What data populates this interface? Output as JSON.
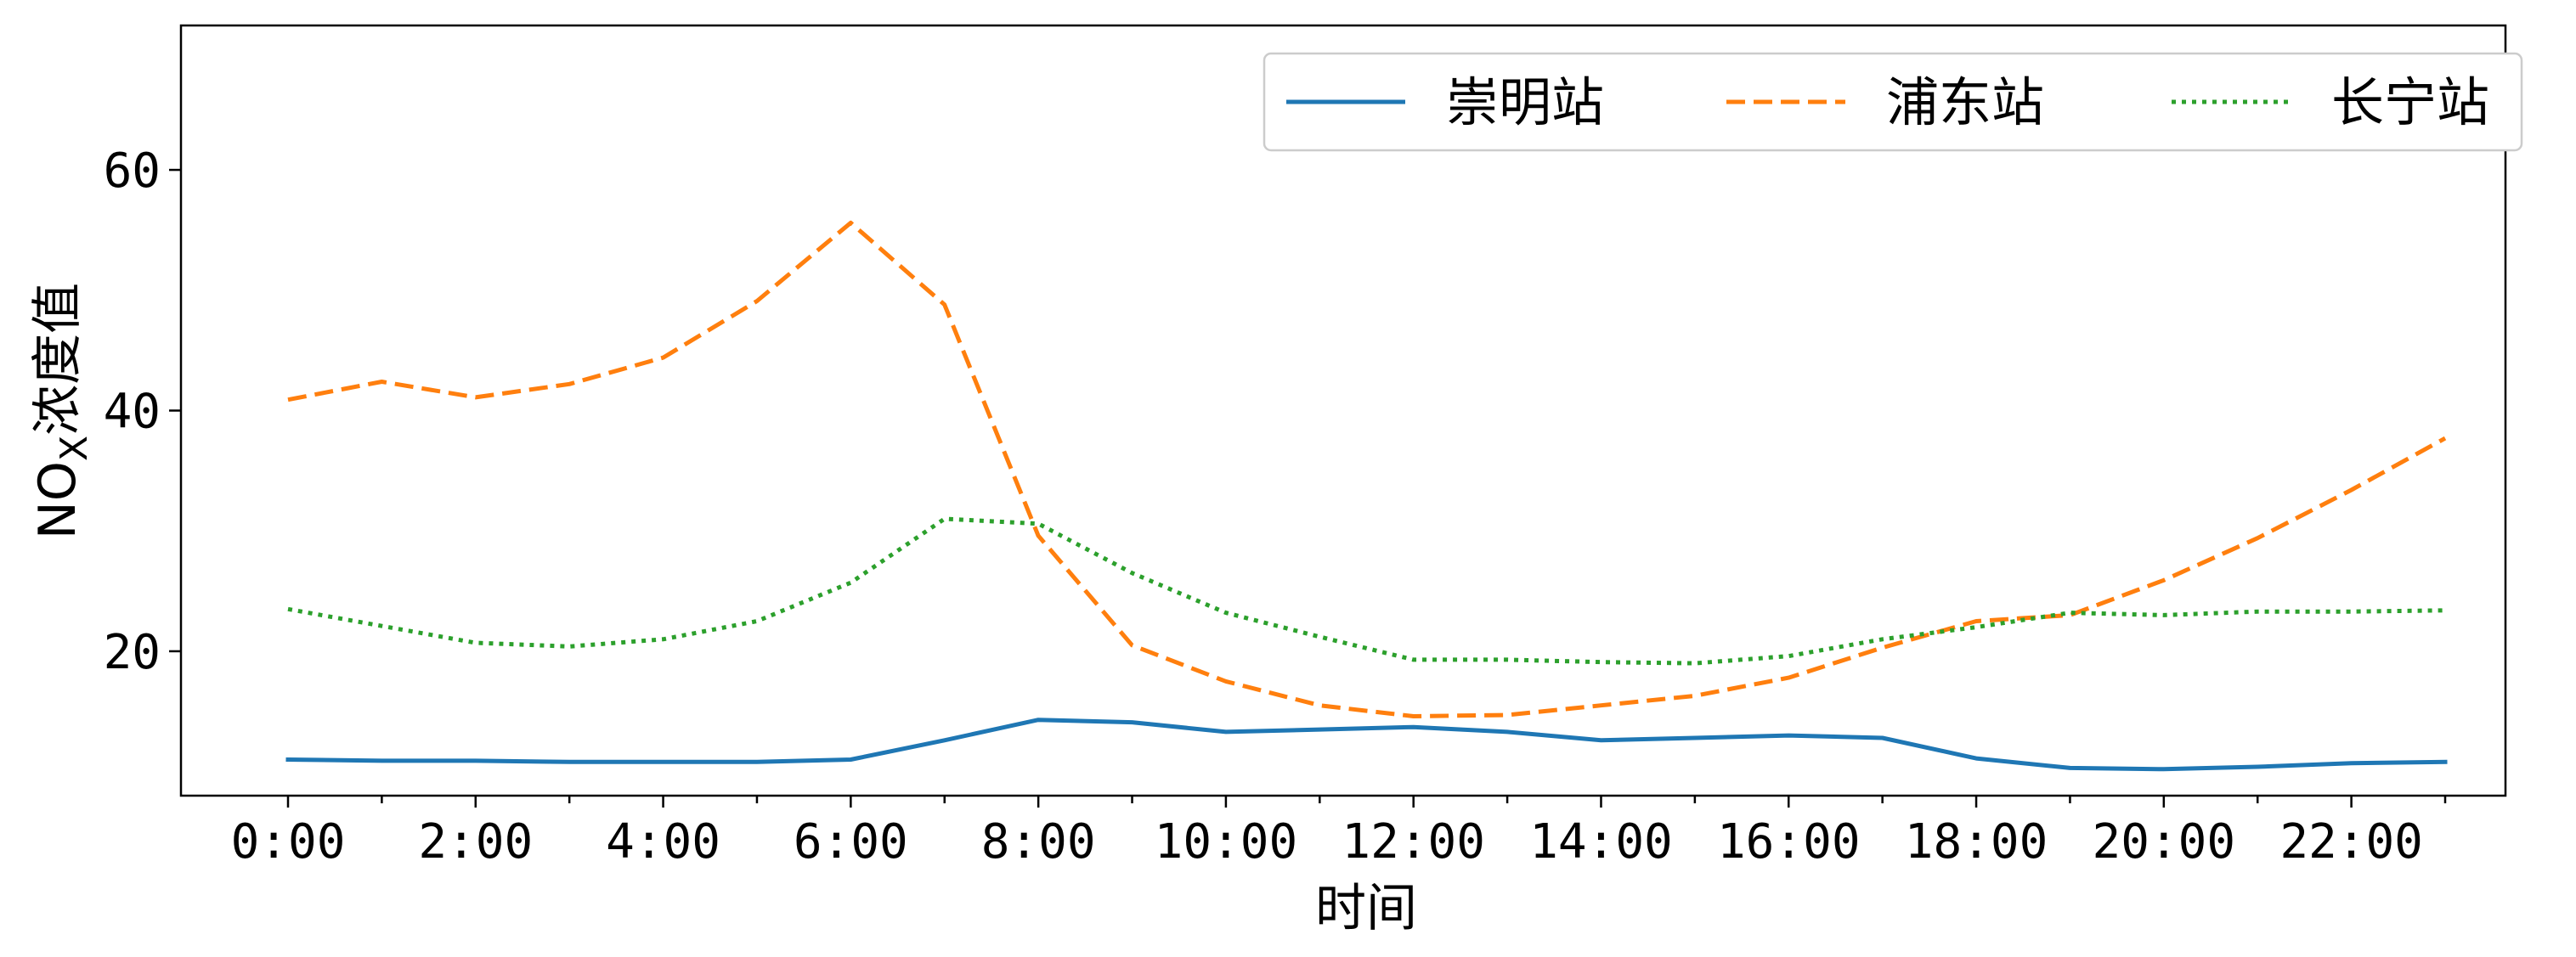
{
  "chart_data": {
    "type": "line",
    "xlabel": "时间",
    "ylabel_main": "NO",
    "ylabel_sub": "X",
    "ylabel_rest": "浓度值",
    "x": [
      "0:00",
      "1:00",
      "2:00",
      "3:00",
      "4:00",
      "5:00",
      "6:00",
      "7:00",
      "8:00",
      "9:00",
      "10:00",
      "11:00",
      "12:00",
      "13:00",
      "14:00",
      "15:00",
      "16:00",
      "17:00",
      "18:00",
      "19:00",
      "20:00",
      "21:00",
      "22:00",
      "23:00"
    ],
    "x_tick_labels": [
      "0:00",
      "2:00",
      "4:00",
      "6:00",
      "8:00",
      "10:00",
      "12:00",
      "14:00",
      "16:00",
      "18:00",
      "20:00",
      "22:00"
    ],
    "y_ticks": [
      20,
      40,
      60
    ],
    "ylim": [
      8,
      72
    ],
    "grid": false,
    "legend_position": "top-right",
    "series": [
      {
        "name": "崇明站",
        "color": "#1f77b4",
        "dash": "solid",
        "values": [
          11.0,
          10.9,
          10.9,
          10.8,
          10.8,
          10.8,
          11.0,
          12.6,
          14.3,
          14.1,
          13.3,
          13.5,
          13.7,
          13.3,
          12.6,
          12.8,
          13.0,
          12.8,
          11.1,
          10.3,
          10.2,
          10.4,
          10.7,
          10.8
        ]
      },
      {
        "name": "浦东站",
        "color": "#ff7f0e",
        "dash": "dashed",
        "values": [
          40.9,
          42.4,
          41.1,
          42.2,
          44.4,
          49.1,
          55.6,
          48.8,
          29.6,
          20.5,
          17.5,
          15.5,
          14.6,
          14.7,
          15.5,
          16.3,
          17.8,
          20.3,
          22.5,
          23.0,
          25.9,
          29.4,
          33.4,
          37.7
        ]
      },
      {
        "name": "长宁站",
        "color": "#2ca02c",
        "dash": "dotted",
        "values": [
          23.5,
          22.1,
          20.7,
          20.4,
          21.0,
          22.5,
          25.7,
          31.0,
          30.6,
          26.5,
          23.2,
          21.2,
          19.3,
          19.3,
          19.1,
          19.0,
          19.6,
          21.0,
          22.0,
          23.2,
          23.0,
          23.3,
          23.3,
          23.4
        ]
      }
    ]
  }
}
